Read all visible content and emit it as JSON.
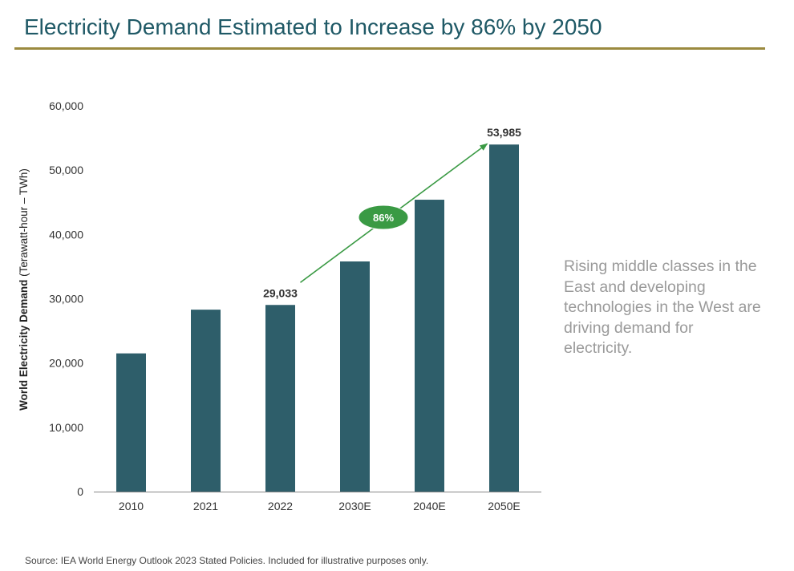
{
  "title": "Electricity Demand Estimated to Increase by 86% by 2050",
  "side_note": "Rising middle classes in the East and developing technologies in the West are driving demand for electricity.",
  "source": "Source: IEA World Energy Outlook 2023 Stated Policies. Included for illustrative purposes only.",
  "colors": {
    "title": "#1f5966",
    "rule": "#9b8a3f",
    "bar": "#2e5e6a",
    "arrow": "#3a9a44",
    "badge": "#3a9a44",
    "side_note": "#9a9a9a"
  },
  "chart_data": {
    "type": "bar",
    "categories": [
      "2010",
      "2021",
      "2022",
      "2030E",
      "2040E",
      "2050E"
    ],
    "values": [
      21500,
      28300,
      29033,
      35800,
      45400,
      53985
    ],
    "ylim": [
      0,
      60000
    ],
    "yticks": [
      "0",
      "10,000",
      "20,000",
      "30,000",
      "40,000",
      "50,000",
      "60,000"
    ],
    "ytick_values": [
      0,
      10000,
      20000,
      30000,
      40000,
      50000,
      60000
    ],
    "ylabel_bold": "World Electricity Demand",
    "ylabel_unit": " (Terawatt-hour – TWh)",
    "xlabel": "",
    "grid": false,
    "data_labels": [
      {
        "category": "2022",
        "text": "29,033"
      },
      {
        "category": "2050E",
        "text": "53,985"
      }
    ],
    "annotation": {
      "from_category": "2022",
      "to_category": "2050E",
      "text": "86%"
    }
  }
}
